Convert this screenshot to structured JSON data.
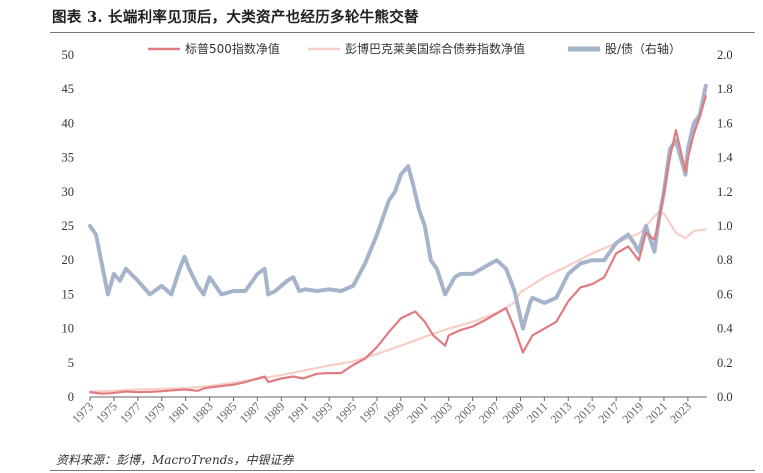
{
  "title": "图表 3. 长端利率见顶后，大类资产也经历多轮牛熊交替",
  "source": "资料来源：彭博，MacroTrends，中银证券",
  "colors": {
    "sp500": "#e07b80",
    "bond": "#f6cfc7",
    "ratio": "#a5b4ca"
  },
  "chart_data": {
    "type": "line",
    "x_labels": [
      "1973",
      "1975",
      "1977",
      "1979",
      "1981",
      "1983",
      "1985",
      "1987",
      "1989",
      "1991",
      "1993",
      "1995",
      "1997",
      "1999",
      "2001",
      "2003",
      "2005",
      "2007",
      "2009",
      "2011",
      "2013",
      "2015",
      "2017",
      "2019",
      "2021",
      "2023"
    ],
    "xlim": [
      1973,
      2024.6
    ],
    "ylim_left": [
      0,
      50
    ],
    "yticks_left": [
      "0",
      "5",
      "10",
      "15",
      "20",
      "25",
      "30",
      "35",
      "40",
      "45",
      "50"
    ],
    "ylim_right": [
      0,
      2.0
    ],
    "yticks_right": [
      "0.0",
      "0.2",
      "0.4",
      "0.6",
      "0.8",
      "1.0",
      "1.2",
      "1.4",
      "1.6",
      "1.8",
      "2.0"
    ],
    "legend_position": "top",
    "series": [
      {
        "name": "标普500指数净值",
        "axis": "left",
        "x": [
          1973,
          1974,
          1974.8,
          1976,
          1977,
          1978,
          1979,
          1980,
          1980.9,
          1982,
          1982.6,
          1983.5,
          1985,
          1986,
          1987.6,
          1987.9,
          1989,
          1990,
          1990.8,
          1992,
          1993,
          1994,
          1995,
          1996,
          1997,
          1998,
          1999,
          2000.2,
          2001,
          2001.7,
          2002.7,
          2003,
          2004,
          2005,
          2006,
          2007.8,
          2008.5,
          2009.2,
          2010,
          2011,
          2012,
          2013,
          2014,
          2015,
          2016,
          2017,
          2018,
          2018.9,
          2019.5,
          2020.2,
          2020.6,
          2021,
          2021.5,
          2022,
          2022.8,
          2023,
          2023.5,
          2024,
          2024.5
        ],
        "y": [
          0.7,
          0.5,
          0.55,
          0.8,
          0.7,
          0.75,
          0.85,
          1.0,
          1.1,
          0.9,
          1.3,
          1.5,
          1.8,
          2.2,
          3.0,
          2.2,
          2.7,
          3.0,
          2.7,
          3.4,
          3.5,
          3.5,
          4.7,
          5.6,
          7.3,
          9.5,
          11.5,
          12.5,
          11.0,
          9.0,
          7.5,
          9.0,
          9.8,
          10.3,
          11.2,
          13.0,
          10.0,
          6.5,
          9.0,
          10.0,
          11.0,
          14.0,
          16.0,
          16.5,
          17.5,
          21.0,
          22.0,
          20.0,
          24.0,
          23.0,
          26.0,
          30.0,
          35.0,
          39.0,
          33.0,
          35.0,
          38.5,
          41.0,
          44.0
        ]
      },
      {
        "name": "彭博巴克莱美国综合债券指数净值",
        "axis": "left",
        "x": [
          1973,
          1975,
          1977,
          1979,
          1980,
          1981,
          1983,
          1985,
          1987,
          1989,
          1991,
          1993,
          1995,
          1997,
          1999,
          2001,
          2003,
          2005,
          2007,
          2008.5,
          2009,
          2011,
          2013,
          2015,
          2017,
          2019,
          2020.5,
          2021,
          2022,
          2022.8,
          2023.5,
          2024.5
        ],
        "y": [
          0.8,
          0.9,
          1.1,
          1.2,
          1.25,
          1.3,
          1.6,
          2.1,
          2.6,
          3.2,
          3.9,
          4.6,
          5.2,
          6.3,
          7.5,
          8.8,
          10.0,
          11.0,
          12.3,
          13.8,
          15.3,
          17.5,
          19.2,
          21.0,
          22.5,
          24.0,
          27.0,
          26.8,
          24.0,
          23.2,
          24.3,
          24.5
        ]
      },
      {
        "name": "股/债（右轴）",
        "axis": "right",
        "x": [
          1973,
          1973.5,
          1974.5,
          1975,
          1975.5,
          1976,
          1977,
          1978,
          1979,
          1979.8,
          1980.5,
          1980.9,
          1981.3,
          1982,
          1982.5,
          1983,
          1983.5,
          1984,
          1985,
          1986,
          1987,
          1987.6,
          1987.9,
          1988.5,
          1989.5,
          1990,
          1990.5,
          1991,
          1992,
          1993,
          1994,
          1995,
          1996,
          1997,
          1998,
          1998.5,
          1999,
          1999.6,
          2000,
          2000.5,
          2001,
          2001.5,
          2002,
          2002.7,
          2003.5,
          2004,
          2005,
          2006,
          2007,
          2007.8,
          2008.5,
          2009.2,
          2009.8,
          2010,
          2011,
          2012,
          2013,
          2014,
          2015,
          2016,
          2017,
          2018,
          2018.5,
          2018.9,
          2019.5,
          2020.2,
          2020.6,
          2021,
          2021.5,
          2022,
          2022.8,
          2023,
          2023.5,
          2024,
          2024.5
        ],
        "y": [
          1.0,
          0.95,
          0.6,
          0.72,
          0.68,
          0.75,
          0.68,
          0.6,
          0.65,
          0.6,
          0.75,
          0.82,
          0.75,
          0.65,
          0.6,
          0.7,
          0.65,
          0.6,
          0.62,
          0.62,
          0.72,
          0.75,
          0.6,
          0.62,
          0.68,
          0.7,
          0.62,
          0.63,
          0.62,
          0.63,
          0.62,
          0.65,
          0.78,
          0.95,
          1.15,
          1.2,
          1.3,
          1.35,
          1.25,
          1.1,
          1.0,
          0.8,
          0.75,
          0.6,
          0.7,
          0.72,
          0.72,
          0.76,
          0.8,
          0.75,
          0.62,
          0.4,
          0.55,
          0.58,
          0.55,
          0.58,
          0.72,
          0.78,
          0.8,
          0.8,
          0.9,
          0.95,
          0.9,
          0.85,
          1.0,
          0.85,
          1.05,
          1.2,
          1.45,
          1.5,
          1.3,
          1.45,
          1.6,
          1.65,
          1.82
        ]
      }
    ]
  }
}
